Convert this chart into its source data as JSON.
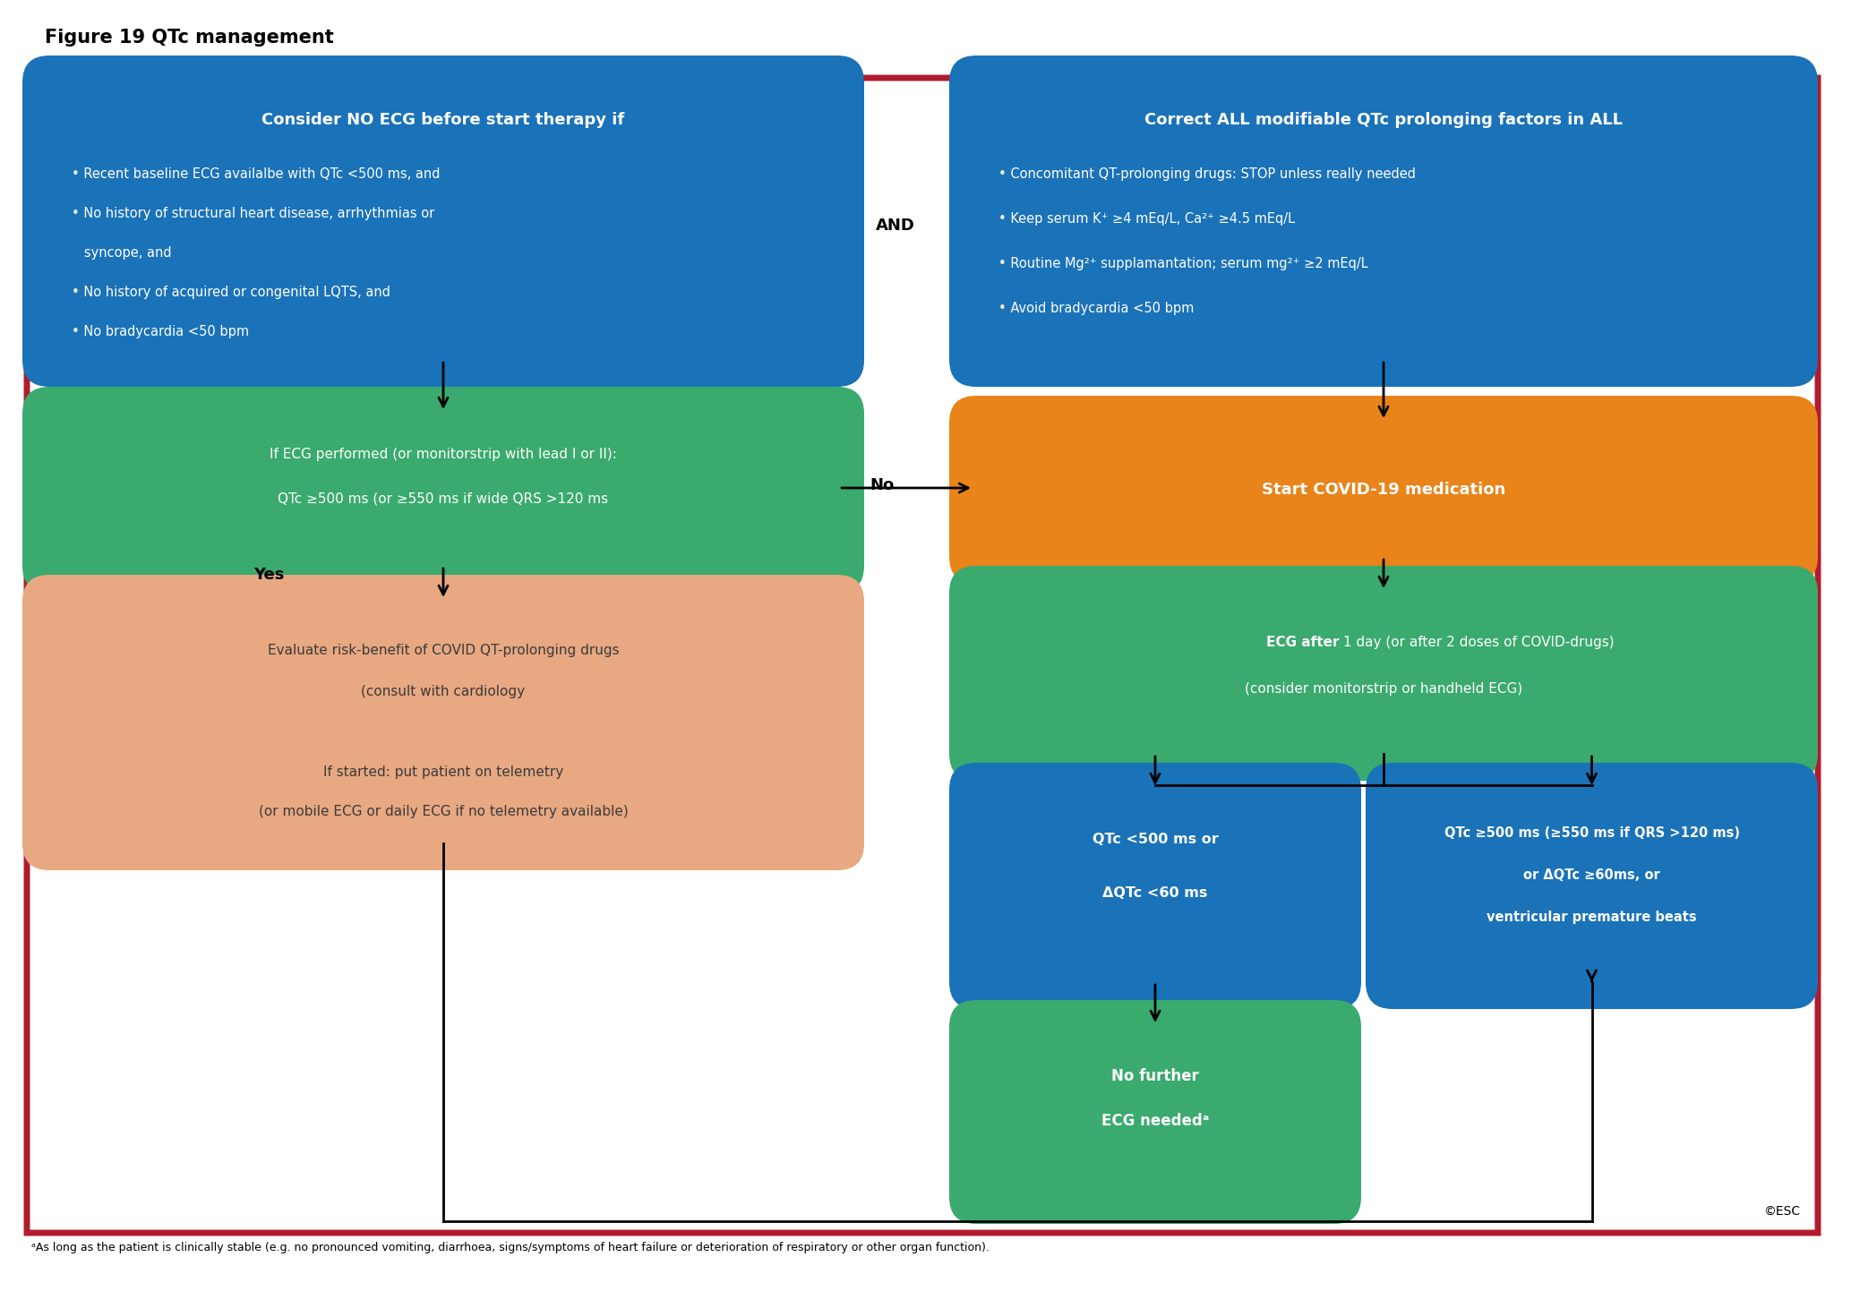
{
  "title": "Figure 19 QTc management",
  "footnote": "ᵃAs long as the patient is clinically stable (e.g. no pronounced vomiting, diarrhoea, signs/symptoms of heart failure or deterioration of respiratory or other organ function).",
  "esc_text": "©ESC",
  "border_color": "#b01c2e",
  "bg_color": "#ffffff",
  "blue_dark": "#1a72b8",
  "green_mid": "#3aaa6e",
  "orange": "#e8841a",
  "salmon": "#e8a882",
  "text_dark": "#3a3a3a"
}
